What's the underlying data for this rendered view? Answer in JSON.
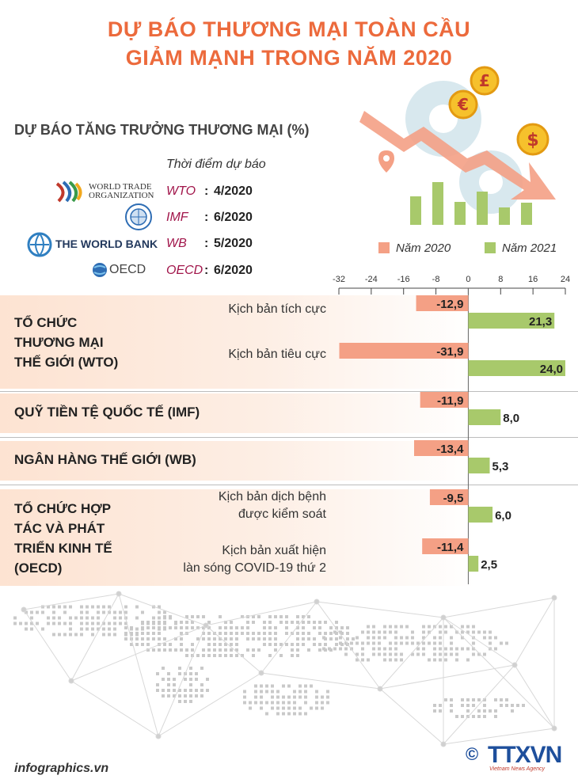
{
  "title": [
    "DỰ BÁO THƯƠNG MẠI TOÀN CẦU",
    "GIẢM MẠNH TRONG NĂM 2020"
  ],
  "subtitle": "DỰ BÁO TĂNG TRƯỞNG THƯƠNG MẠI (%)",
  "forecast_heading": "Thời điểm dự báo",
  "organizations": [
    {
      "logo": "WORLD TRADE ORGANIZATION",
      "logo_line1": "WORLD TRADE",
      "logo_line2": "ORGANIZATION",
      "code": "WTO",
      "colon": ":",
      "date": "4/2020"
    },
    {
      "logo": "IMF seal",
      "code": "IMF",
      "colon": ":",
      "date": "6/2020"
    },
    {
      "logo": "THE WORLD BANK",
      "code": "WB",
      "colon": ":",
      "date": "5/2020"
    },
    {
      "logo": "OECD",
      "code": "OECD",
      "colon": ":",
      "date": "6/2020"
    }
  ],
  "colors": {
    "year2020": "#f4a085",
    "year2021": "#a8c96b",
    "title": "#ec6a3c",
    "org_code": "#a1154a"
  },
  "footer": {
    "site": "infographics.vn",
    "copyright": "©",
    "agency": "TTXVN",
    "agency_sub": "Vietnam News Agency"
  },
  "chart_data": {
    "type": "bar",
    "orientation": "horizontal",
    "xlim": [
      -32,
      24
    ],
    "xticks": [
      -32,
      -24,
      -16,
      -8,
      0,
      8,
      16,
      24
    ],
    "legend": [
      "Năm 2020",
      "Năm 2021"
    ],
    "legend_position": "top-right",
    "groups": [
      {
        "label": [
          "TỔ CHỨC",
          "THƯƠNG MẠI",
          "THẾ GIỚI (WTO)"
        ],
        "scenarios": [
          {
            "label": [
              "Kịch bản tích cực"
            ],
            "values": [
              -12.9,
              21.3
            ],
            "value_labels": [
              "-12,9",
              "21,3"
            ]
          },
          {
            "label": [
              "Kịch bản tiêu cực"
            ],
            "values": [
              -31.9,
              24.0
            ],
            "value_labels": [
              "-31,9",
              "24,0"
            ]
          }
        ]
      },
      {
        "label": [
          "QUỸ TIỀN TỆ QUỐC TẾ (IMF)"
        ],
        "scenarios": [
          {
            "label": [],
            "values": [
              -11.9,
              8.0
            ],
            "value_labels": [
              "-11,9",
              "8,0"
            ]
          }
        ]
      },
      {
        "label": [
          "NGÂN HÀNG THẾ GIỚI (WB)"
        ],
        "scenarios": [
          {
            "label": [],
            "values": [
              -13.4,
              5.3
            ],
            "value_labels": [
              "-13,4",
              "5,3"
            ]
          }
        ]
      },
      {
        "label": [
          "TỔ CHỨC HỢP",
          "TÁC VÀ PHÁT",
          "TRIỂN KINH TẾ",
          "(OECD)"
        ],
        "scenarios": [
          {
            "label": [
              "Kịch bản dịch bệnh",
              "được kiểm soát"
            ],
            "values": [
              -9.5,
              6.0
            ],
            "value_labels": [
              "-9,5",
              "6,0"
            ]
          },
          {
            "label": [
              "Kịch bản xuất hiện",
              "làn sóng COVID-19 thứ 2"
            ],
            "values": [
              -11.4,
              2.5
            ],
            "value_labels": [
              "-11,4",
              "2,5"
            ]
          }
        ]
      }
    ]
  }
}
